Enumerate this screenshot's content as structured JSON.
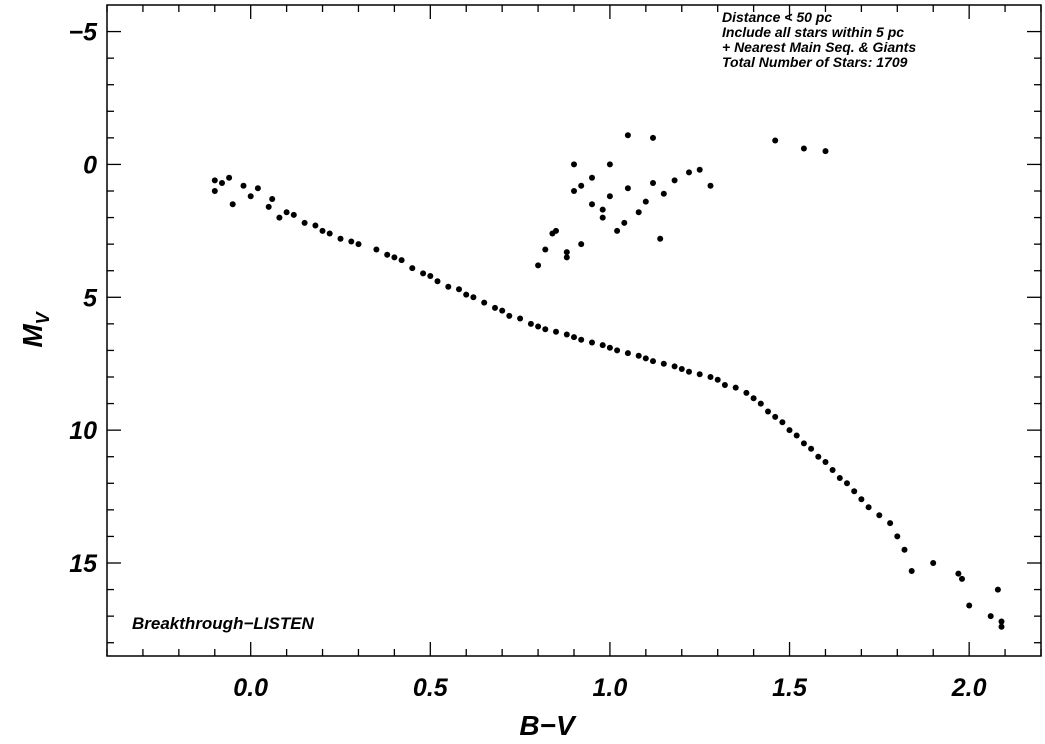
{
  "chart_data": {
    "type": "scatter",
    "title": "",
    "xlabel": "B−V",
    "ylabel_main": "M",
    "ylabel_sub": "V",
    "xlim": [
      -0.4,
      2.2
    ],
    "ylim": [
      18.5,
      -6
    ],
    "y_inverted": true,
    "x_ticks": [
      0.0,
      0.5,
      1.0,
      1.5,
      2.0
    ],
    "x_tick_labels": [
      "0.0",
      "0.5",
      "1.0",
      "1.5",
      "2.0"
    ],
    "y_ticks": [
      -5,
      0,
      5,
      10,
      15
    ],
    "y_tick_labels": [
      "−5",
      "0",
      "5",
      "10",
      "15"
    ],
    "grid": false,
    "marker_color": "#000000",
    "annotations": [
      "Distance < 50 pc",
      "Include all stars within 5 pc",
      "+ Nearest Main Seq. & Giants",
      "Total Number of Stars: 1709"
    ],
    "watermark": "Breakthrough−LISTEN",
    "series": [
      {
        "x": [
          -0.1,
          -0.08,
          -0.06,
          -0.1,
          -0.02,
          0.0,
          0.02,
          -0.05,
          0.06,
          0.1,
          0.05,
          0.08,
          0.12,
          0.15,
          0.18,
          0.2,
          0.22,
          0.25,
          0.28,
          0.3,
          0.35,
          0.38,
          0.4,
          0.42,
          0.45,
          0.48,
          0.5,
          0.52,
          0.55,
          0.58,
          0.6,
          0.62,
          0.65,
          0.68,
          0.7,
          0.72,
          0.75,
          0.78,
          0.8,
          0.82,
          0.85,
          0.88,
          0.9,
          0.92,
          0.95,
          0.98,
          1.0,
          1.02,
          1.05,
          1.08,
          1.1,
          1.12,
          1.15,
          1.18,
          1.2,
          1.22,
          1.25,
          1.28,
          1.3,
          1.32,
          1.35,
          1.38,
          1.4,
          1.42,
          1.44,
          1.46,
          1.48,
          1.5,
          1.52,
          1.54,
          1.56,
          1.58,
          1.6,
          1.62,
          1.64,
          1.66,
          1.68,
          1.7,
          1.72,
          1.75,
          1.78,
          1.8,
          1.82,
          1.84,
          1.9,
          1.97,
          1.98,
          2.0,
          2.06,
          2.08,
          2.09,
          2.09,
          0.8,
          0.82,
          0.85,
          0.88,
          0.9,
          0.92,
          0.95,
          0.98,
          1.0,
          1.02,
          1.05,
          1.08,
          1.1,
          1.12,
          1.15,
          1.18,
          1.05,
          1.12,
          1.22,
          1.25,
          1.28,
          1.46,
          1.54,
          1.6,
          0.9,
          0.95,
          1.0,
          0.84,
          0.88,
          0.92,
          0.98,
          1.04,
          1.14
        ],
        "y": [
          0.6,
          0.7,
          0.5,
          1.0,
          0.8,
          1.2,
          0.9,
          1.5,
          1.3,
          1.8,
          1.6,
          2.0,
          1.9,
          2.2,
          2.3,
          2.5,
          2.6,
          2.8,
          2.9,
          3.0,
          3.2,
          3.4,
          3.5,
          3.6,
          3.9,
          4.1,
          4.2,
          4.4,
          4.6,
          4.7,
          4.9,
          5.0,
          5.2,
          5.4,
          5.5,
          5.7,
          5.8,
          6.0,
          6.1,
          6.2,
          6.3,
          6.4,
          6.5,
          6.6,
          6.7,
          6.8,
          6.9,
          7.0,
          7.1,
          7.2,
          7.3,
          7.4,
          7.5,
          7.6,
          7.7,
          7.8,
          7.9,
          8.0,
          8.1,
          8.3,
          8.4,
          8.6,
          8.8,
          9.0,
          9.3,
          9.5,
          9.7,
          10.0,
          10.2,
          10.5,
          10.7,
          11.0,
          11.2,
          11.5,
          11.8,
          12.0,
          12.3,
          12.6,
          12.9,
          13.2,
          13.5,
          14.0,
          14.5,
          15.3,
          15.0,
          15.4,
          15.6,
          16.6,
          17.0,
          16.0,
          17.2,
          17.4,
          3.8,
          3.2,
          2.5,
          3.5,
          1.0,
          0.8,
          1.5,
          2.0,
          1.2,
          2.5,
          0.9,
          1.8,
          1.4,
          0.7,
          1.1,
          0.6,
          -1.1,
          -1.0,
          0.3,
          0.2,
          0.8,
          -0.9,
          -0.6,
          -0.5,
          0.0,
          0.5,
          0.0,
          2.6,
          3.3,
          3.0,
          1.7,
          2.2,
          2.8
        ]
      }
    ]
  }
}
